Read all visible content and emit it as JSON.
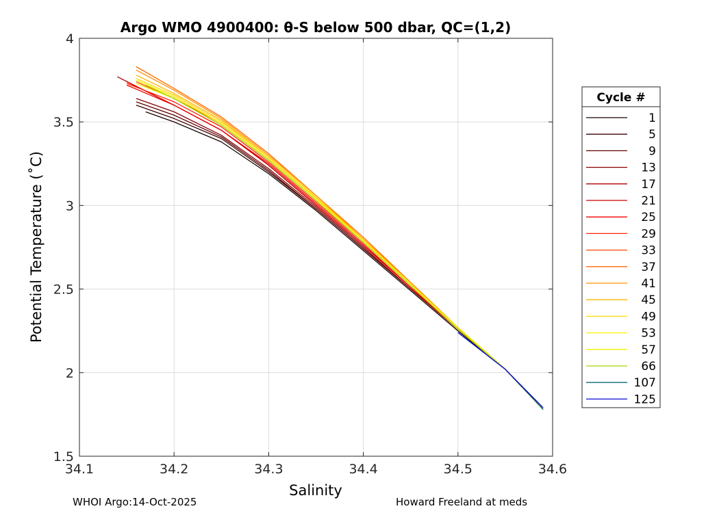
{
  "chart_data": {
    "type": "line",
    "title": "Argo WMO 4900400: θ-S below 500 dbar,  QC=(1,2)",
    "xlabel": "Salinity",
    "ylabel": "Potential Temperature (˚C)",
    "xlim": [
      34.1,
      34.6
    ],
    "ylim": [
      1.5,
      4
    ],
    "xticks": [
      "34.1",
      "34.2",
      "34.3",
      "34.4",
      "34.5",
      "34.6"
    ],
    "yticks": [
      "1.5",
      "2",
      "2.5",
      "3",
      "3.5",
      "4"
    ],
    "grid": true,
    "legend_title": "Cycle #",
    "legend_position": "right",
    "series": [
      {
        "name": "1",
        "color": "#1a0000",
        "x": [
          34.17,
          34.2,
          34.25,
          34.3,
          34.35,
          34.4,
          34.45,
          34.5,
          34.55,
          34.59
        ],
        "y": [
          3.56,
          3.5,
          3.38,
          3.19,
          2.97,
          2.73,
          2.49,
          2.25,
          2.02,
          1.78
        ]
      },
      {
        "name": "5",
        "color": "#3d0000",
        "x": [
          34.16,
          34.2,
          34.25,
          34.3,
          34.35,
          34.4,
          34.45,
          34.5,
          34.55,
          34.59
        ],
        "y": [
          3.6,
          3.52,
          3.4,
          3.2,
          2.98,
          2.74,
          2.5,
          2.26,
          2.02,
          1.78
        ]
      },
      {
        "name": "9",
        "color": "#600000",
        "x": [
          34.16,
          34.2,
          34.25,
          34.3,
          34.35,
          34.4,
          34.45,
          34.5,
          34.55,
          34.59
        ],
        "y": [
          3.62,
          3.54,
          3.41,
          3.21,
          2.98,
          2.74,
          2.5,
          2.26,
          2.02,
          1.78
        ]
      },
      {
        "name": "13",
        "color": "#850000",
        "x": [
          34.16,
          34.2,
          34.25,
          34.3,
          34.35,
          34.4,
          34.45,
          34.5,
          34.55,
          34.59
        ],
        "y": [
          3.64,
          3.56,
          3.42,
          3.22,
          2.99,
          2.75,
          2.5,
          2.26,
          2.02,
          1.78
        ]
      },
      {
        "name": "17",
        "color": "#ab0000",
        "x": [
          34.14,
          34.2,
          34.25,
          34.3,
          34.35,
          34.4,
          34.45,
          34.5,
          34.55,
          34.59
        ],
        "y": [
          3.77,
          3.6,
          3.45,
          3.24,
          3.0,
          2.76,
          2.51,
          2.26,
          2.02,
          1.78
        ]
      },
      {
        "name": "21",
        "color": "#cf0000",
        "x": [
          34.15,
          34.2,
          34.25,
          34.3,
          34.35,
          34.4,
          34.45,
          34.5,
          34.55,
          34.59
        ],
        "y": [
          3.74,
          3.6,
          3.45,
          3.24,
          3.0,
          2.76,
          2.51,
          2.26,
          2.02,
          1.78
        ]
      },
      {
        "name": "25",
        "color": "#f20000",
        "x": [
          34.15,
          34.2,
          34.25,
          34.3,
          34.35,
          34.4,
          34.45,
          34.5,
          34.55,
          34.59
        ],
        "y": [
          3.72,
          3.6,
          3.45,
          3.25,
          3.01,
          2.77,
          2.51,
          2.26,
          2.02,
          1.78
        ]
      },
      {
        "name": "29",
        "color": "#ff2000",
        "x": [
          34.15,
          34.2,
          34.25,
          34.3,
          34.35,
          34.4,
          34.45,
          34.5,
          34.55,
          34.59
        ],
        "y": [
          3.73,
          3.62,
          3.47,
          3.26,
          3.02,
          2.78,
          2.52,
          2.26,
          2.02,
          1.78
        ]
      },
      {
        "name": "33",
        "color": "#ff4500",
        "x": [
          34.16,
          34.2,
          34.25,
          34.3,
          34.35,
          34.4,
          34.45,
          34.5,
          34.55,
          34.59
        ],
        "y": [
          3.74,
          3.64,
          3.49,
          3.28,
          3.04,
          2.79,
          2.53,
          2.27,
          2.02,
          1.78
        ]
      },
      {
        "name": "37",
        "color": "#ff6a00",
        "x": [
          34.16,
          34.2,
          34.25,
          34.3,
          34.35,
          34.4,
          34.45,
          34.5,
          34.55,
          34.59
        ],
        "y": [
          3.83,
          3.7,
          3.53,
          3.31,
          3.06,
          2.81,
          2.54,
          2.27,
          2.02,
          1.78
        ]
      },
      {
        "name": "41",
        "color": "#ff8f00",
        "x": [
          34.16,
          34.2,
          34.25,
          34.3,
          34.35,
          34.4,
          34.45,
          34.5,
          34.55,
          34.59
        ],
        "y": [
          3.81,
          3.69,
          3.52,
          3.3,
          3.06,
          2.8,
          2.54,
          2.27,
          2.02,
          1.78
        ]
      },
      {
        "name": "45",
        "color": "#ffb400",
        "x": [
          34.16,
          34.2,
          34.25,
          34.3,
          34.35,
          34.4,
          34.45,
          34.5,
          34.55,
          34.59
        ],
        "y": [
          3.78,
          3.67,
          3.51,
          3.29,
          3.05,
          2.8,
          2.53,
          2.27,
          2.02,
          1.78
        ]
      },
      {
        "name": "49",
        "color": "#ffd800",
        "x": [
          34.16,
          34.2,
          34.25,
          34.3,
          34.35,
          34.4,
          34.45,
          34.5,
          34.55,
          34.59
        ],
        "y": [
          3.76,
          3.66,
          3.5,
          3.29,
          3.05,
          2.79,
          2.53,
          2.27,
          2.02,
          1.78
        ]
      },
      {
        "name": "53",
        "color": "#ffee00",
        "x": [
          34.16,
          34.2,
          34.25,
          34.3,
          34.35,
          34.4,
          34.45,
          34.5,
          34.55,
          34.59
        ],
        "y": [
          3.75,
          3.65,
          3.49,
          3.28,
          3.04,
          2.79,
          2.53,
          2.27,
          2.02,
          1.78
        ]
      },
      {
        "name": "57",
        "color": "#f0f000",
        "x": [
          34.16,
          34.2,
          34.25,
          34.3,
          34.35,
          34.4,
          34.45,
          34.5,
          34.55,
          34.59
        ],
        "y": [
          3.73,
          3.64,
          3.48,
          3.27,
          3.03,
          2.78,
          2.52,
          2.26,
          2.02,
          1.78
        ]
      },
      {
        "name": "66",
        "color": "#a6d600",
        "x": [
          34.17,
          34.2,
          34.25,
          34.3,
          34.35,
          34.4,
          34.45,
          34.5,
          34.55,
          34.59
        ],
        "y": [
          3.72,
          3.64,
          3.48,
          3.27,
          3.03,
          2.78,
          2.52,
          2.26,
          2.02,
          1.78
        ]
      },
      {
        "name": "107",
        "color": "#0a6b7a",
        "x": [
          34.5,
          34.55,
          34.59
        ],
        "y": [
          2.24,
          2.02,
          1.78
        ]
      },
      {
        "name": "125",
        "color": "#0a0ad4",
        "x": [
          34.5,
          34.55,
          34.59
        ],
        "y": [
          2.24,
          2.02,
          1.79
        ]
      }
    ]
  },
  "footer": {
    "left": "WHOI Argo:14-Oct-2025",
    "right": "Howard Freeland at meds"
  }
}
